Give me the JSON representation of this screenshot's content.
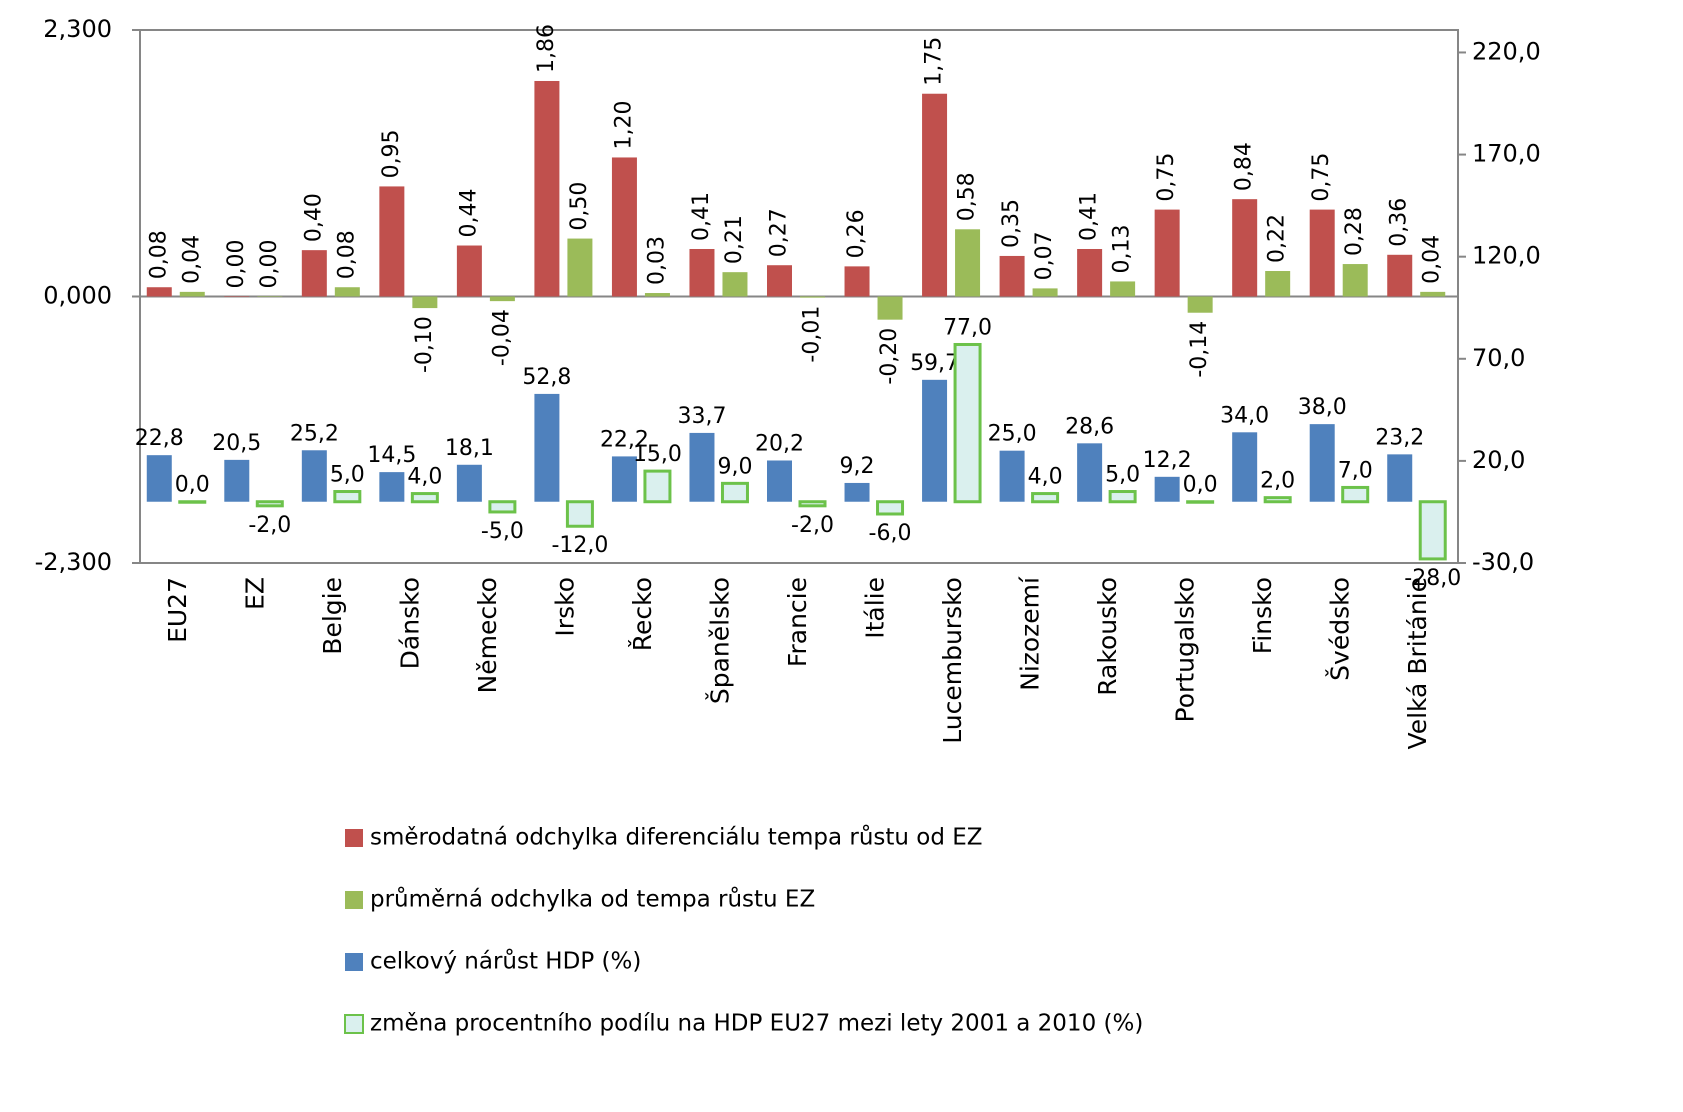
{
  "chart_data": {
    "type": "bar",
    "categories": [
      "EU27",
      "EZ",
      "Belgie",
      "Dánsko",
      "Německo",
      "Irsko",
      "Řecko",
      "Španělsko",
      "Francie",
      "Itálie",
      "Lucembursko",
      "Nizozemí",
      "Rakousko",
      "Portugalsko",
      "Finsko",
      "Švédsko",
      "Velká Británie"
    ],
    "series": [
      {
        "name": "směrodatná odchylka diferenciálu tempa růstu od EZ",
        "color": "#c0504d",
        "values": [
          0.08,
          0.0,
          0.4,
          0.95,
          0.44,
          1.86,
          1.2,
          0.41,
          0.27,
          0.26,
          1.75,
          0.35,
          0.41,
          0.75,
          0.84,
          0.75,
          0.36
        ],
        "value_labels": [
          "0,08",
          "0,00",
          "0,40",
          "0,95",
          "0,44",
          "1,86",
          "1,20",
          "0,41",
          "0,27",
          "0,26",
          "1,75",
          "0,35",
          "0,41",
          "0,75",
          "0,84",
          "0,75",
          "0,36"
        ]
      },
      {
        "name": "průměrná odchylka od tempa růstu EZ",
        "color": "#9bbb59",
        "values": [
          0.04,
          0.0,
          0.08,
          -0.1,
          -0.04,
          0.5,
          0.03,
          0.21,
          -0.01,
          -0.2,
          0.58,
          0.07,
          0.13,
          -0.14,
          0.22,
          0.28,
          0.04
        ],
        "value_labels": [
          "0,04",
          "0,00",
          "0,08",
          "-0,10",
          "-0,04",
          "0,50",
          "0,03",
          "0,21",
          "-0,01",
          "-0,20",
          "0,58",
          "0,07",
          "0,13",
          "-0,14",
          "0,22",
          "0,28",
          "0,04"
        ]
      },
      {
        "name": "celkový nárůst HDP (%)",
        "color": "#4f81bd",
        "axis": "y2",
        "values": [
          22.8,
          20.5,
          25.2,
          14.5,
          18.1,
          52.8,
          22.2,
          33.7,
          20.2,
          9.2,
          59.7,
          25.0,
          28.6,
          12.2,
          34.0,
          38.0,
          23.2
        ],
        "value_labels": [
          "22,8",
          "20,5",
          "25,2",
          "14,5",
          "18,1",
          "52,8",
          "22,2",
          "33,7",
          "20,2",
          "9,2",
          "59,7",
          "25,0",
          "28,6",
          "12,2",
          "34,0",
          "38,0",
          "23,2"
        ]
      },
      {
        "name": "změna procentního podílu na HDP EU27 mezi lety 2001 a 2010 (%)",
        "color": "#daf0ee",
        "edgecolor": "#6cc24a",
        "axis": "y2",
        "values": [
          0.0,
          -2.0,
          5.0,
          4.0,
          -5.0,
          -12.0,
          15.0,
          9.0,
          -2.0,
          -6.0,
          77.0,
          4.0,
          5.0,
          0.0,
          2.0,
          7.0,
          -28.0
        ],
        "value_labels": [
          "0,0",
          "-2,0",
          "5,0",
          "4,0",
          "-5,0",
          "-12,0",
          "15,0",
          "9,0",
          "-2,0",
          "-6,0",
          "77,0",
          "4,0",
          "5,0",
          "0,0",
          "2,0",
          "7,0",
          "-28,0"
        ]
      }
    ],
    "ylim": [
      -2.3,
      2.3
    ],
    "yticks": [
      {
        "value": 2.3,
        "label": "2,300"
      },
      {
        "value": 0,
        "label": "0,000"
      },
      {
        "value": -2.3,
        "label": "-2,300"
      }
    ],
    "y2lim": [
      -30,
      231
    ],
    "y2ticks": [
      {
        "value": 220,
        "label": "220,0"
      },
      {
        "value": 170,
        "label": "170,0"
      },
      {
        "value": 120,
        "label": "120,0"
      },
      {
        "value": 70,
        "label": "70,0"
      },
      {
        "value": 20,
        "label": "20,0"
      },
      {
        "value": -30,
        "label": "-30,0"
      }
    ],
    "grid": false
  }
}
